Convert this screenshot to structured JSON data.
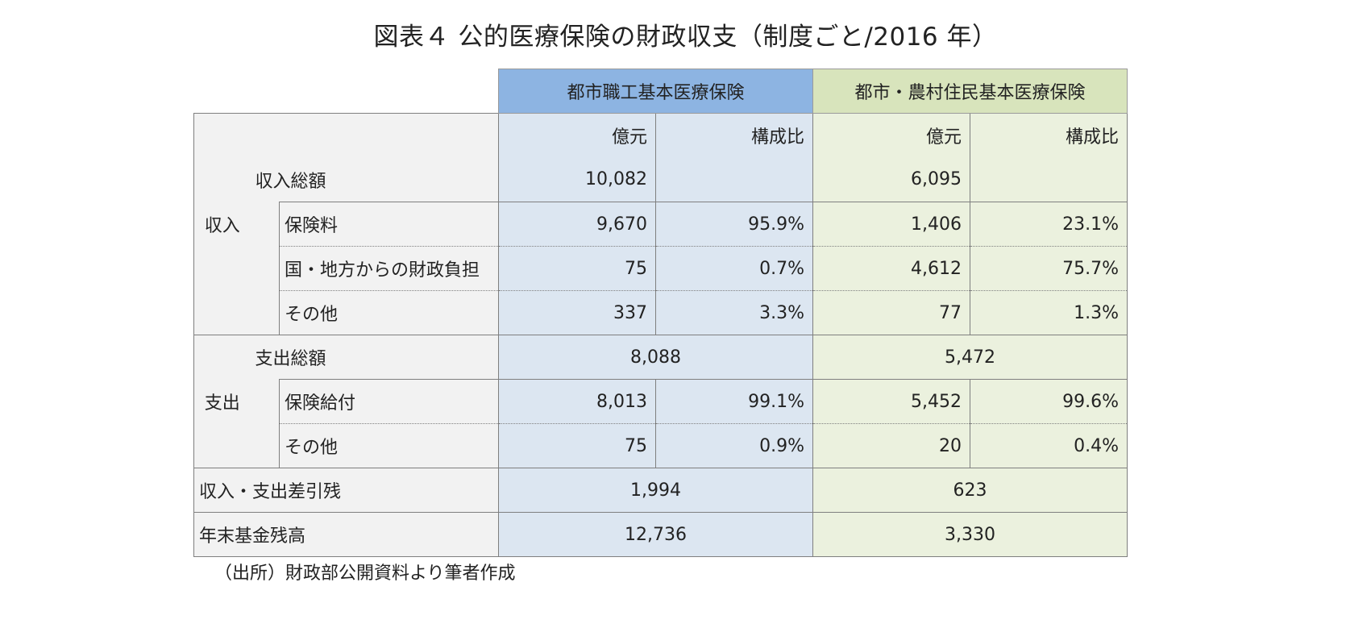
{
  "title": "図表４ 公的医療保険の財政収支（制度ごと/2016 年）",
  "source": "（出所）財政部公開資料より筆者作成",
  "colors": {
    "urban_header": "#8db4e2",
    "urban_body": "#dce6f1",
    "rural_header": "#d8e4bc",
    "rural_body": "#ebf1de",
    "label_bg": "#f2f2f2"
  },
  "chart_data": {
    "type": "table",
    "title": "図表４ 公的医療保険の財政収支（制度ごと/2016 年）",
    "groups": [
      "都市職工基本医療保険",
      "都市・農村住民基本医療保険"
    ],
    "subcolumns": [
      "億元",
      "構成比"
    ],
    "sections": [
      {
        "label": "収入",
        "total": {
          "label": "収入総額",
          "urban": "10,082",
          "rural": "6,095"
        },
        "items": [
          {
            "label": "保険料",
            "urban_value": "9,670",
            "urban_ratio": "95.9%",
            "rural_value": "1,406",
            "rural_ratio": "23.1%"
          },
          {
            "label": "国・地方からの財政負担",
            "urban_value": "75",
            "urban_ratio": "0.7%",
            "rural_value": "4,612",
            "rural_ratio": "75.7%"
          },
          {
            "label": "その他",
            "urban_value": "337",
            "urban_ratio": "3.3%",
            "rural_value": "77",
            "rural_ratio": "1.3%"
          }
        ]
      },
      {
        "label": "支出",
        "total": {
          "label": "支出総額",
          "urban": "8,088",
          "rural": "5,472"
        },
        "items": [
          {
            "label": "保険給付",
            "urban_value": "8,013",
            "urban_ratio": "99.1%",
            "rural_value": "5,452",
            "rural_ratio": "99.6%"
          },
          {
            "label": "その他",
            "urban_value": "75",
            "urban_ratio": "0.9%",
            "rural_value": "20",
            "rural_ratio": "0.4%"
          }
        ]
      }
    ],
    "summary": [
      {
        "label": "収入・支出差引残",
        "urban": "1,994",
        "rural": "623"
      },
      {
        "label": "年末基金残高",
        "urban": "12,736",
        "rural": "3,330"
      }
    ]
  }
}
